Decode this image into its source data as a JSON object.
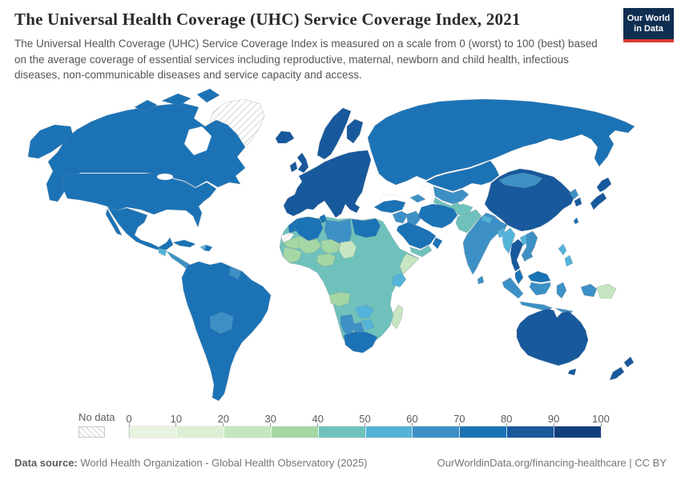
{
  "header": {
    "title": "The Universal Health Coverage (UHC) Service Coverage Index, 2021",
    "subtitle": "The Universal Health Coverage (UHC) Service Coverage Index is measured on a scale from 0 (worst) to 100 (best) based on the average coverage of essential services including reproductive, maternal, newborn and child health, infectious diseases, non-communicable diseases and service capacity and access."
  },
  "logo": {
    "line1": "Our World",
    "line2": "in Data",
    "bg_color": "#0f2e51",
    "accent_color": "#dc3a2f"
  },
  "legend": {
    "no_data_label": "No data",
    "ticks": [
      "0",
      "10",
      "20",
      "30",
      "40",
      "50",
      "60",
      "70",
      "80",
      "90",
      "100"
    ],
    "bin_colors": {
      "0-10": "#e7f4e0",
      "10-20": "#dcefd5",
      "20-30": "#c6e5c0",
      "30-40": "#a5d7a4",
      "40-50": "#6fc2bb",
      "50-60": "#54b3d9",
      "60-70": "#3d90c5",
      "70-80": "#1b73b6",
      "80-90": "#17599c",
      "90-100": "#123e7d"
    }
  },
  "footer": {
    "source_label": "Data source:",
    "source_text": " World Health Organization - Global Health Observatory (2025)",
    "credit_text": "OurWorldinData.org/financing-healthcare | CC BY"
  },
  "chart_data": {
    "type": "choropleth_map",
    "title": "The Universal Health Coverage (UHC) Service Coverage Index, 2021",
    "scale_range": [
      0,
      100
    ],
    "scale_note": "0 = worst, 100 = best; values shown as 10-point color bins",
    "legend_position": "bottom",
    "no_data_regions": [
      "Greenland",
      "Western Sahara"
    ],
    "regions": [
      {
        "id": "greenland",
        "name": "Greenland",
        "range": "no-data"
      },
      {
        "id": "western-sahara",
        "name": "Western Sahara",
        "range": "no-data"
      },
      {
        "id": "canada",
        "name": "Canada",
        "range": "70-80"
      },
      {
        "id": "usa",
        "name": "United States",
        "range": "70-80"
      },
      {
        "id": "mexico",
        "name": "Mexico",
        "range": "70-80"
      },
      {
        "id": "guatemala",
        "name": "Guatemala",
        "range": "50-60"
      },
      {
        "id": "central-america",
        "name": "Central America (Honduras to Panama)",
        "range": "60-70"
      },
      {
        "id": "cuba",
        "name": "Cuba",
        "range": "70-80"
      },
      {
        "id": "haiti",
        "name": "Haiti",
        "range": "50-60"
      },
      {
        "id": "dominican-republic",
        "name": "Dominican Republic",
        "range": "70-80"
      },
      {
        "id": "south-america",
        "name": "South America (Brazil, Argentina, Chile, Peru, Colombia, Venezuela)",
        "range": "70-80"
      },
      {
        "id": "bolivia",
        "name": "Bolivia",
        "range": "60-70"
      },
      {
        "id": "guyana-suriname",
        "name": "Guyana & Suriname",
        "range": "60-70"
      },
      {
        "id": "iceland",
        "name": "Iceland",
        "range": "80-90"
      },
      {
        "id": "united-kingdom",
        "name": "United Kingdom",
        "range": "80-90"
      },
      {
        "id": "ireland",
        "name": "Ireland",
        "range": "80-90"
      },
      {
        "id": "scandinavia",
        "name": "Norway & Sweden",
        "range": "80-90"
      },
      {
        "id": "finland",
        "name": "Finland",
        "range": "80-90"
      },
      {
        "id": "europe",
        "name": "Europe (Western, Central & Eastern)",
        "range": "80-90"
      },
      {
        "id": "russia",
        "name": "Russia",
        "range": "70-80"
      },
      {
        "id": "kazakhstan",
        "name": "Kazakhstan",
        "range": "70-80"
      },
      {
        "id": "uzbekistan",
        "name": "Uzbekistan",
        "range": "60-70"
      },
      {
        "id": "turkmenistan",
        "name": "Turkmenistan",
        "range": "40-50"
      },
      {
        "id": "caucasus",
        "name": "Caucasus",
        "range": "60-70"
      },
      {
        "id": "turkey",
        "name": "Turkey",
        "range": "70-80"
      },
      {
        "id": "levant",
        "name": "Levant",
        "range": "60-70"
      },
      {
        "id": "iraq",
        "name": "Iraq",
        "range": "60-70"
      },
      {
        "id": "iran",
        "name": "Iran",
        "range": "70-80"
      },
      {
        "id": "saudi-arabia",
        "name": "Saudi Arabia & Gulf states",
        "range": "70-80"
      },
      {
        "id": "yemen",
        "name": "Yemen",
        "range": "40-50"
      },
      {
        "id": "oman",
        "name": "Oman",
        "range": "70-80"
      },
      {
        "id": "afghanistan",
        "name": "Afghanistan",
        "range": "40-50"
      },
      {
        "id": "pakistan",
        "name": "Pakistan",
        "range": "40-50"
      },
      {
        "id": "india",
        "name": "India",
        "range": "60-70"
      },
      {
        "id": "sri-lanka",
        "name": "Sri Lanka",
        "range": "60-70"
      },
      {
        "id": "nepal",
        "name": "Nepal",
        "range": "50-60"
      },
      {
        "id": "bangladesh",
        "name": "Bangladesh",
        "range": "50-60"
      },
      {
        "id": "china",
        "name": "China",
        "range": "80-90"
      },
      {
        "id": "taiwan",
        "name": "Taiwan",
        "range": "70-80"
      },
      {
        "id": "mongolia",
        "name": "Mongolia",
        "range": "60-70"
      },
      {
        "id": "north-korea",
        "name": "North Korea",
        "range": "60-70"
      },
      {
        "id": "south-korea",
        "name": "South Korea",
        "range": "80-90"
      },
      {
        "id": "japan",
        "name": "Japan",
        "range": "80-90"
      },
      {
        "id": "myanmar",
        "name": "Myanmar",
        "range": "50-60"
      },
      {
        "id": "thailand",
        "name": "Thailand",
        "range": "80-90"
      },
      {
        "id": "laos",
        "name": "Laos",
        "range": "50-60"
      },
      {
        "id": "vietnam",
        "name": "Vietnam",
        "range": "60-70"
      },
      {
        "id": "cambodia",
        "name": "Cambodia",
        "range": "60-70"
      },
      {
        "id": "malaysia",
        "name": "Malaysia",
        "range": "70-80"
      },
      {
        "id": "indonesia",
        "name": "Indonesia",
        "range": "60-70"
      },
      {
        "id": "philippines",
        "name": "Philippines",
        "range": "50-60"
      },
      {
        "id": "papua-new-guinea",
        "name": "Papua New Guinea",
        "range": "20-30"
      },
      {
        "id": "australia",
        "name": "Australia",
        "range": "80-90"
      },
      {
        "id": "new-zealand",
        "name": "New Zealand",
        "range": "80-90"
      },
      {
        "id": "africa-base",
        "name": "Sub-Saharan Africa (most countries: Sudan, Ethiopia, DR Congo, Tanzania, Mozambique...)",
        "range": "40-50"
      },
      {
        "id": "morocco",
        "name": "Morocco",
        "range": "70-80"
      },
      {
        "id": "algeria",
        "name": "Algeria",
        "range": "70-80"
      },
      {
        "id": "tunisia",
        "name": "Tunisia",
        "range": "70-80"
      },
      {
        "id": "libya",
        "name": "Libya",
        "range": "60-70"
      },
      {
        "id": "egypt",
        "name": "Egypt",
        "range": "70-80"
      },
      {
        "id": "mauritania",
        "name": "Mauritania",
        "range": "30-40"
      },
      {
        "id": "mali",
        "name": "Mali",
        "range": "30-40"
      },
      {
        "id": "niger",
        "name": "Niger",
        "range": "30-40"
      },
      {
        "id": "chad",
        "name": "Chad",
        "range": "20-30"
      },
      {
        "id": "senegal-guinea",
        "name": "Senegal-Guinea coast",
        "range": "30-40"
      },
      {
        "id": "nigeria",
        "name": "Nigeria",
        "range": "30-40"
      },
      {
        "id": "somalia",
        "name": "Somalia",
        "range": "20-30"
      },
      {
        "id": "angola",
        "name": "Angola",
        "range": "30-40"
      },
      {
        "id": "kenya",
        "name": "Kenya",
        "range": "50-60"
      },
      {
        "id": "zambia",
        "name": "Zambia",
        "range": "50-60"
      },
      {
        "id": "zimbabwe",
        "name": "Zimbabwe",
        "range": "50-60"
      },
      {
        "id": "botswana",
        "name": "Botswana",
        "range": "60-70"
      },
      {
        "id": "namibia",
        "name": "Namibia",
        "range": "60-70"
      },
      {
        "id": "south-africa",
        "name": "South Africa",
        "range": "70-80"
      },
      {
        "id": "madagascar",
        "name": "Madagascar",
        "range": "20-30"
      }
    ]
  }
}
